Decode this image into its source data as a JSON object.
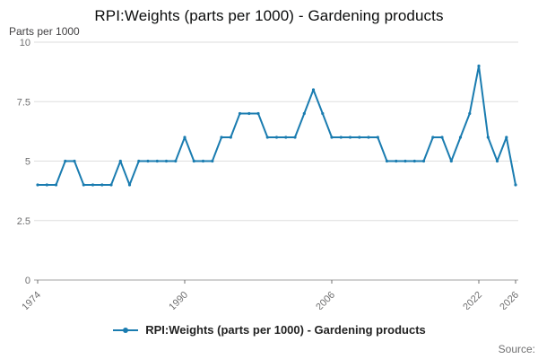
{
  "page": {
    "source_label": "Source:"
  },
  "chart_data": {
    "type": "line",
    "title": "RPI:Weights (parts per 1000) - Gardening products",
    "ylabel": "Parts per 1000",
    "xlabel": "",
    "ylim": [
      0,
      10
    ],
    "yticks": [
      0,
      2.5,
      5,
      7.5,
      10
    ],
    "xticks": [
      1974,
      1990,
      2006,
      2022,
      2026
    ],
    "grid": true,
    "legend_position": "bottom",
    "line_color": "#1a7cb0",
    "grid_color": "#dedede",
    "axis_color": "#a0a0a0",
    "tick_text_color": "#707071",
    "x": [
      1974,
      1975,
      1976,
      1977,
      1978,
      1979,
      1980,
      1981,
      1982,
      1983,
      1984,
      1985,
      1986,
      1987,
      1988,
      1989,
      1990,
      1991,
      1992,
      1993,
      1994,
      1995,
      1996,
      1997,
      1998,
      1999,
      2000,
      2001,
      2002,
      2003,
      2004,
      2005,
      2006,
      2007,
      2008,
      2009,
      2010,
      2011,
      2012,
      2013,
      2014,
      2015,
      2016,
      2017,
      2018,
      2019,
      2020,
      2021,
      2022,
      2023,
      2024,
      2025,
      2026
    ],
    "series": [
      {
        "name": "RPI:Weights (parts per 1000) - Gardening products",
        "values": [
          4,
          4,
          4,
          5,
          5,
          4,
          4,
          4,
          4,
          5,
          4,
          5,
          5,
          5,
          5,
          5,
          6,
          5,
          5,
          5,
          6,
          6,
          7,
          7,
          7,
          6,
          6,
          6,
          6,
          7,
          8,
          7,
          6,
          6,
          6,
          6,
          6,
          6,
          5,
          5,
          5,
          5,
          5,
          6,
          6,
          5,
          6,
          7,
          9,
          6,
          5,
          6,
          4
        ]
      }
    ]
  }
}
